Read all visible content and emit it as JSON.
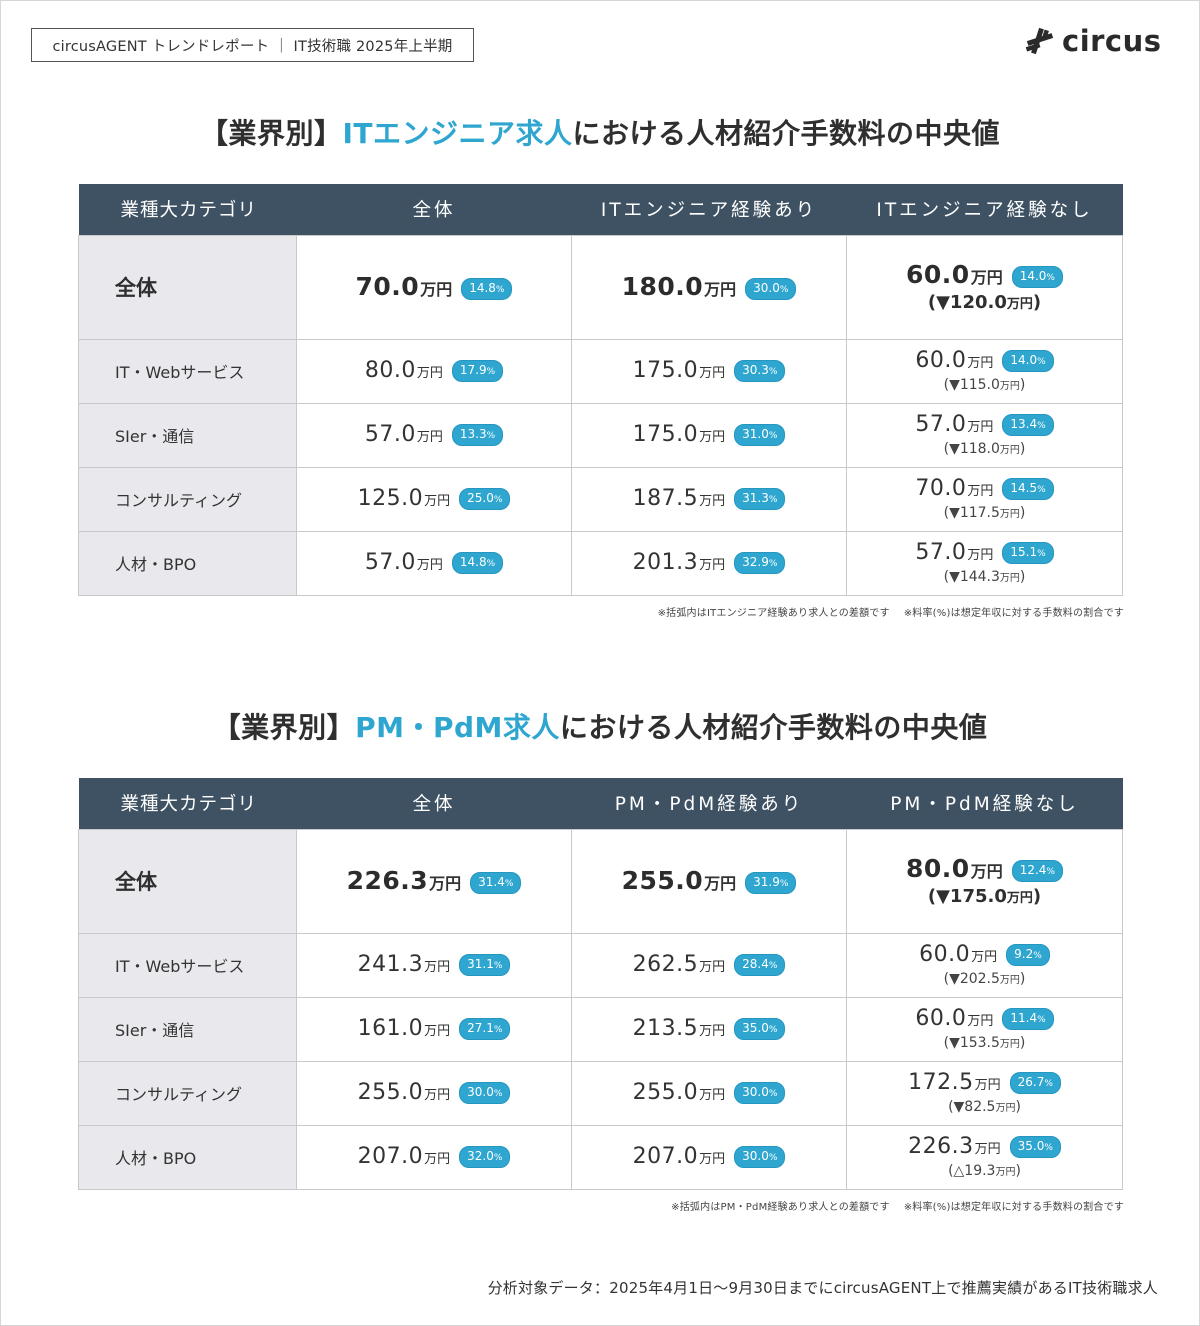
{
  "header": {
    "report_tag": "circusAGENT トレンドレポート ｜ IT技術職 2025年上半期",
    "logo_text": "circus",
    "logo_icon": "circus-logo-mark"
  },
  "colors": {
    "accent": "#2ea6d0",
    "header_bg": "#3f5263",
    "category_bg": "#e9e8ec"
  },
  "section1": {
    "title_prefix": "【業界別】",
    "title_highlight": "ITエンジニア求人",
    "title_suffix": "における人材紹介手数料の中央値",
    "columns": [
      "業種大カテゴリ",
      "全体",
      "ITエンジニア経験あり",
      "ITエンジニア経験なし"
    ],
    "rows": [
      {
        "category": "全体",
        "all": {
          "value": "70.0",
          "unit": "万円",
          "rate": "14.8",
          "pct": "%"
        },
        "with": {
          "value": "180.0",
          "unit": "万円",
          "rate": "30.0",
          "pct": "%"
        },
        "without": {
          "value": "60.0",
          "unit": "万円",
          "rate": "14.0",
          "pct": "%",
          "diff": "(▼120.0",
          "diff_unit": "万円",
          "close": ")"
        }
      },
      {
        "category": "IT・Webサービス",
        "all": {
          "value": "80.0",
          "unit": "万円",
          "rate": "17.9",
          "pct": "%"
        },
        "with": {
          "value": "175.0",
          "unit": "万円",
          "rate": "30.3",
          "pct": "%"
        },
        "without": {
          "value": "60.0",
          "unit": "万円",
          "rate": "14.0",
          "pct": "%",
          "diff": "(▼115.0",
          "diff_unit": "万円",
          "close": ")"
        }
      },
      {
        "category": "SIer・通信",
        "all": {
          "value": "57.0",
          "unit": "万円",
          "rate": "13.3",
          "pct": "%"
        },
        "with": {
          "value": "175.0",
          "unit": "万円",
          "rate": "31.0",
          "pct": "%"
        },
        "without": {
          "value": "57.0",
          "unit": "万円",
          "rate": "13.4",
          "pct": "%",
          "diff": "(▼118.0",
          "diff_unit": "万円",
          "close": ")"
        }
      },
      {
        "category": "コンサルティング",
        "all": {
          "value": "125.0",
          "unit": "万円",
          "rate": "25.0",
          "pct": "%"
        },
        "with": {
          "value": "187.5",
          "unit": "万円",
          "rate": "31.3",
          "pct": "%"
        },
        "without": {
          "value": "70.0",
          "unit": "万円",
          "rate": "14.5",
          "pct": "%",
          "diff": "(▼117.5",
          "diff_unit": "万円",
          "close": ")"
        }
      },
      {
        "category": "人材・BPO",
        "all": {
          "value": "57.0",
          "unit": "万円",
          "rate": "14.8",
          "pct": "%"
        },
        "with": {
          "value": "201.3",
          "unit": "万円",
          "rate": "32.9",
          "pct": "%"
        },
        "without": {
          "value": "57.0",
          "unit": "万円",
          "rate": "15.1",
          "pct": "%",
          "diff": "(▼144.3",
          "diff_unit": "万円",
          "close": ")"
        }
      }
    ],
    "note1": "※括弧内はITエンジニア経験あり求人との差額です",
    "note2": "※料率(%)は想定年収に対する手数料の割合です"
  },
  "section2": {
    "title_prefix": "【業界別】",
    "title_highlight": "PM・PdM求人",
    "title_suffix": "における人材紹介手数料の中央値",
    "columns": [
      "業種大カテゴリ",
      "全体",
      "PM・PdM経験あり",
      "PM・PdM経験なし"
    ],
    "rows": [
      {
        "category": "全体",
        "all": {
          "value": "226.3",
          "unit": "万円",
          "rate": "31.4",
          "pct": "%"
        },
        "with": {
          "value": "255.0",
          "unit": "万円",
          "rate": "31.9",
          "pct": "%"
        },
        "without": {
          "value": "80.0",
          "unit": "万円",
          "rate": "12.4",
          "pct": "%",
          "diff": "(▼175.0",
          "diff_unit": "万円",
          "close": ")"
        }
      },
      {
        "category": "IT・Webサービス",
        "all": {
          "value": "241.3",
          "unit": "万円",
          "rate": "31.1",
          "pct": "%"
        },
        "with": {
          "value": "262.5",
          "unit": "万円",
          "rate": "28.4",
          "pct": "%"
        },
        "without": {
          "value": "60.0",
          "unit": "万円",
          "rate": "9.2",
          "pct": "%",
          "diff": "(▼202.5",
          "diff_unit": "万円",
          "close": ")"
        }
      },
      {
        "category": "SIer・通信",
        "all": {
          "value": "161.0",
          "unit": "万円",
          "rate": "27.1",
          "pct": "%"
        },
        "with": {
          "value": "213.5",
          "unit": "万円",
          "rate": "35.0",
          "pct": "%"
        },
        "without": {
          "value": "60.0",
          "unit": "万円",
          "rate": "11.4",
          "pct": "%",
          "diff": "(▼153.5",
          "diff_unit": "万円",
          "close": ")"
        }
      },
      {
        "category": "コンサルティング",
        "all": {
          "value": "255.0",
          "unit": "万円",
          "rate": "30.0",
          "pct": "%"
        },
        "with": {
          "value": "255.0",
          "unit": "万円",
          "rate": "30.0",
          "pct": "%"
        },
        "without": {
          "value": "172.5",
          "unit": "万円",
          "rate": "26.7",
          "pct": "%",
          "diff": "(▼82.5",
          "diff_unit": "万円",
          "close": ")"
        }
      },
      {
        "category": "人材・BPO",
        "all": {
          "value": "207.0",
          "unit": "万円",
          "rate": "32.0",
          "pct": "%"
        },
        "with": {
          "value": "207.0",
          "unit": "万円",
          "rate": "30.0",
          "pct": "%"
        },
        "without": {
          "value": "226.3",
          "unit": "万円",
          "rate": "35.0",
          "pct": "%",
          "diff": "(△19.3",
          "diff_unit": "万円",
          "close": ")"
        }
      }
    ],
    "note1": "※括弧内はPM・PdM経験あり求人との差額です",
    "note2": "※料率(%)は想定年収に対する手数料の割合です"
  },
  "footer": {
    "text": "分析対象データ：2025年4月1日〜9月30日までにcircusAGENT上で推薦実績があるIT技術職求人"
  }
}
